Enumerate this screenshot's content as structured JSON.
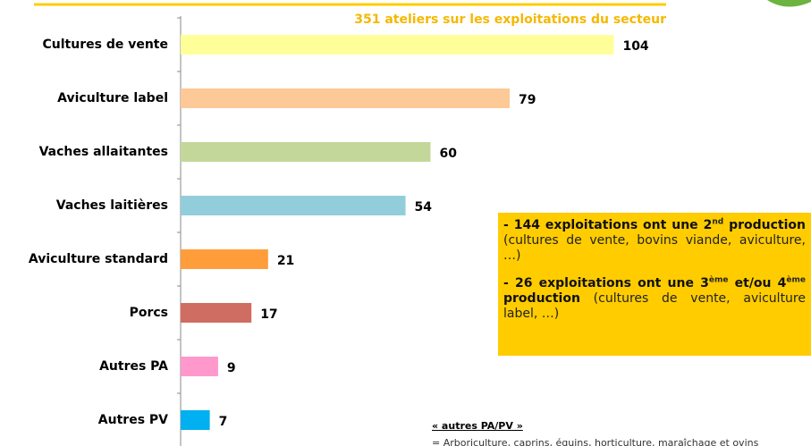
{
  "chart_data": {
    "type": "bar",
    "orientation": "horizontal",
    "subtitle": "351 ateliers sur les exploitations du secteur",
    "categories": [
      "Cultures de vente",
      "Aviculture label",
      "Vaches allaitantes",
      "Vaches laitières",
      "Aviculture standard",
      "Porcs",
      "Autres PA",
      "Autres PV"
    ],
    "values": [
      104,
      79,
      60,
      54,
      21,
      17,
      9,
      7
    ],
    "colors": [
      "#ffff99",
      "#fdc997",
      "#c4d79b",
      "#92cddc",
      "#ff9d3a",
      "#d06d62",
      "#ff99cc",
      "#00b0f0"
    ],
    "xlim": [
      0,
      120
    ]
  },
  "annotation": {
    "first": {
      "lead": "- 144 exploitations ont une 2",
      "sup": "nd",
      "bold": " production",
      "plain": " (cultures de vente, bovins viande, aviculture, …)"
    },
    "second": {
      "lead": "- 26 exploitations ont une 3",
      "sup1": "ème",
      "mid": " et/ou 4",
      "sup2": "ème",
      "bold": " production",
      "plain": " (cultures de vente, aviculture label, …)"
    }
  },
  "footnote": {
    "title": "« autres PA/PV »",
    "text": "= Arboriculture, caprins, équins, horticulture, maraîchage et ovins"
  }
}
